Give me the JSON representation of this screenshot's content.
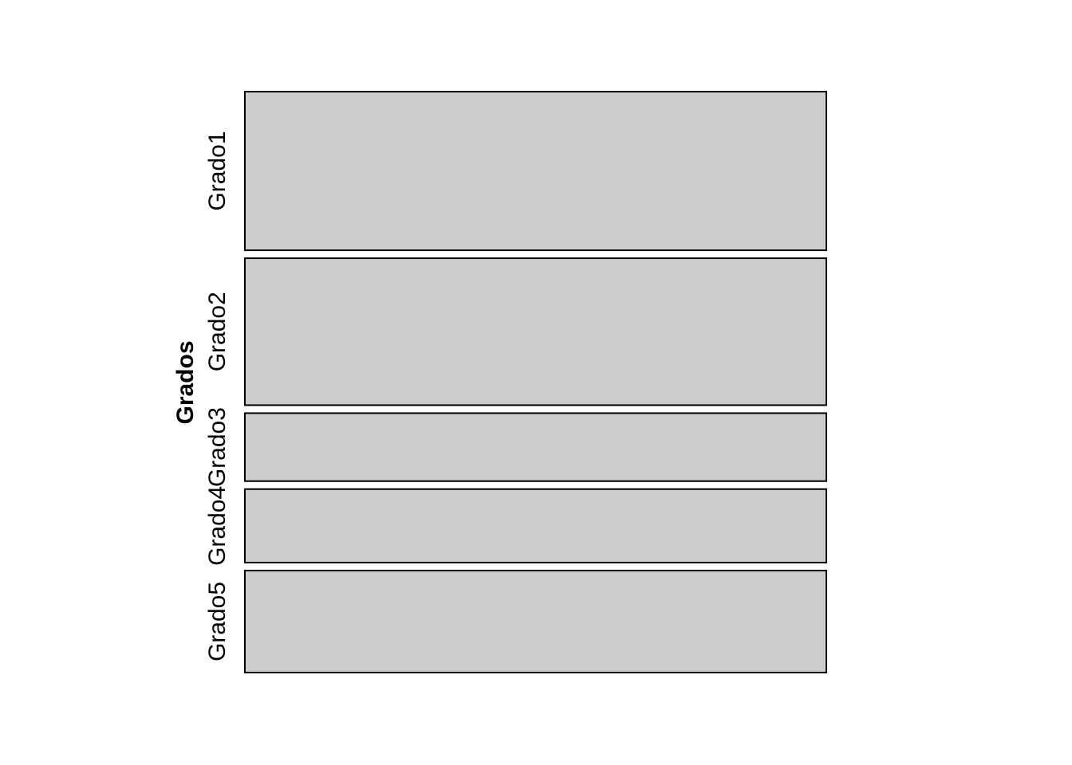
{
  "chart_data": {
    "type": "mosaic",
    "ylabel": "Grados",
    "categories": [
      "Grado1",
      "Grado2",
      "Grado3",
      "Grado4",
      "Grado5"
    ],
    "values": [
      0.2739,
      0.2537,
      0.1174,
      0.1269,
      0.1761
    ],
    "fill_color": "#CCCCCC",
    "border_color": "#000000"
  }
}
